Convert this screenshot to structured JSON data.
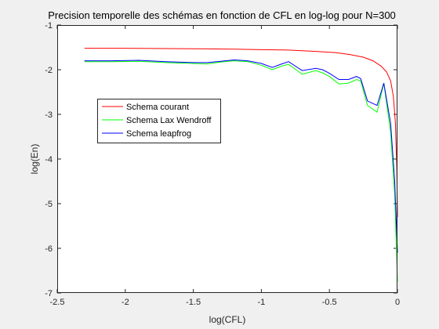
{
  "chart_data": {
    "type": "line",
    "title": "Precision temporelle des schémas en fonction de CFL en log-log pour N=300",
    "xlabel": "log(CFL)",
    "ylabel": "log(En)",
    "xlim": [
      -2.5,
      0
    ],
    "ylim": [
      -7,
      -1
    ],
    "xticks": [
      -2.5,
      -2,
      -1.5,
      -1,
      -0.5,
      0
    ],
    "yticks": [
      -7,
      -6,
      -5,
      -4,
      -3,
      -2,
      -1
    ],
    "xtick_labels": [
      "-2.5",
      "-2",
      "-1.5",
      "-1",
      "-0.5",
      "0"
    ],
    "ytick_labels": [
      "-7",
      "-6",
      "-5",
      "-4",
      "-3",
      "-2",
      "-1"
    ],
    "grid": false,
    "legend_position": "upper-left-inside",
    "series": [
      {
        "name": "Schema courant",
        "color": "#ff0000",
        "points": [
          [
            -2.3,
            -1.52
          ],
          [
            -2.0,
            -1.52
          ],
          [
            -1.5,
            -1.53
          ],
          [
            -1.2,
            -1.54
          ],
          [
            -1.0,
            -1.55
          ],
          [
            -0.8,
            -1.56
          ],
          [
            -0.6,
            -1.59
          ],
          [
            -0.45,
            -1.62
          ],
          [
            -0.35,
            -1.66
          ],
          [
            -0.25,
            -1.72
          ],
          [
            -0.18,
            -1.8
          ],
          [
            -0.12,
            -1.92
          ],
          [
            -0.08,
            -2.05
          ],
          [
            -0.05,
            -2.25
          ],
          [
            -0.03,
            -2.6
          ],
          [
            -0.015,
            -3.2
          ],
          [
            -0.005,
            -4.2
          ],
          [
            0.0,
            -5.3
          ]
        ]
      },
      {
        "name": "Schema Lax Wendroff",
        "color": "#00ff00",
        "points": [
          [
            -2.3,
            -1.82
          ],
          [
            -2.1,
            -1.82
          ],
          [
            -1.9,
            -1.81
          ],
          [
            -1.7,
            -1.84
          ],
          [
            -1.5,
            -1.86
          ],
          [
            -1.4,
            -1.87
          ],
          [
            -1.3,
            -1.83
          ],
          [
            -1.2,
            -1.8
          ],
          [
            -1.1,
            -1.82
          ],
          [
            -1.0,
            -1.9
          ],
          [
            -0.92,
            -2.0
          ],
          [
            -0.85,
            -1.92
          ],
          [
            -0.8,
            -1.88
          ],
          [
            -0.7,
            -2.1
          ],
          [
            -0.6,
            -2.02
          ],
          [
            -0.55,
            -2.07
          ],
          [
            -0.5,
            -2.15
          ],
          [
            -0.43,
            -2.32
          ],
          [
            -0.36,
            -2.3
          ],
          [
            -0.3,
            -2.22
          ],
          [
            -0.27,
            -2.25
          ],
          [
            -0.22,
            -2.8
          ],
          [
            -0.15,
            -2.95
          ],
          [
            -0.1,
            -2.3
          ],
          [
            -0.05,
            -3.4
          ],
          [
            -0.02,
            -4.8
          ],
          [
            0.0,
            -6.75
          ]
        ]
      },
      {
        "name": "Schema leapfrog",
        "color": "#0000ff",
        "points": [
          [
            -2.3,
            -1.8
          ],
          [
            -2.1,
            -1.8
          ],
          [
            -1.9,
            -1.79
          ],
          [
            -1.7,
            -1.82
          ],
          [
            -1.5,
            -1.84
          ],
          [
            -1.4,
            -1.84
          ],
          [
            -1.3,
            -1.81
          ],
          [
            -1.2,
            -1.78
          ],
          [
            -1.1,
            -1.8
          ],
          [
            -1.0,
            -1.86
          ],
          [
            -0.92,
            -1.95
          ],
          [
            -0.85,
            -1.87
          ],
          [
            -0.8,
            -1.82
          ],
          [
            -0.7,
            -2.02
          ],
          [
            -0.6,
            -1.97
          ],
          [
            -0.55,
            -2.0
          ],
          [
            -0.5,
            -2.08
          ],
          [
            -0.43,
            -2.22
          ],
          [
            -0.36,
            -2.22
          ],
          [
            -0.3,
            -2.15
          ],
          [
            -0.27,
            -2.2
          ],
          [
            -0.22,
            -2.7
          ],
          [
            -0.15,
            -2.8
          ],
          [
            -0.1,
            -2.3
          ],
          [
            -0.05,
            -3.2
          ],
          [
            -0.02,
            -4.5
          ],
          [
            0.0,
            -6.1
          ]
        ]
      }
    ]
  }
}
